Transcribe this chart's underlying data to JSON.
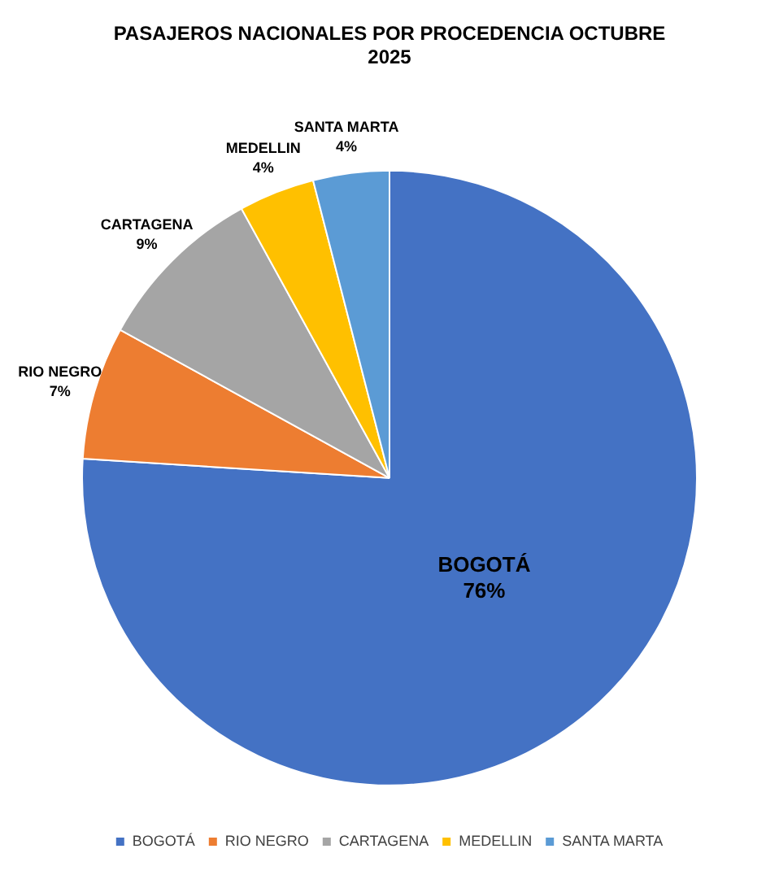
{
  "chart_data": {
    "type": "pie",
    "title": "PASAJEROS NACIONALES POR PROCEDENCIA OCTUBRE 2025",
    "categories": [
      "BOGOTÁ",
      "RIO NEGRO",
      "CARTAGENA",
      "MEDELLIN",
      "SANTA MARTA"
    ],
    "values": [
      76,
      7,
      9,
      4,
      4
    ],
    "colors": [
      "#4472c4",
      "#ed7d31",
      "#a5a5a5",
      "#ffc000",
      "#5b9bd5"
    ],
    "value_labels": [
      "76%",
      "7%",
      "9%",
      "4%",
      "4%"
    ],
    "legend": "bottom"
  }
}
